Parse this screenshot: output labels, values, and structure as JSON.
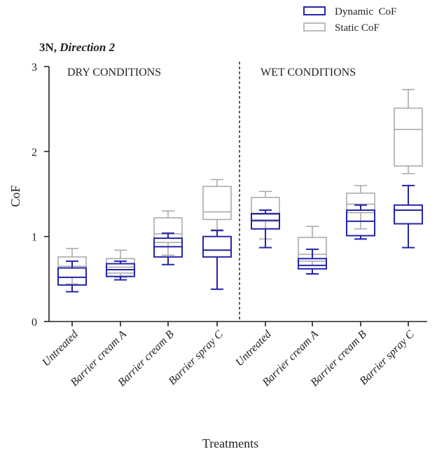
{
  "chart_data": {
    "type": "box",
    "title_main": "3N, ",
    "title_italic": "Direction 2",
    "xlabel": "Treatments",
    "ylabel": "CoF",
    "ylim": [
      0,
      3
    ],
    "yticks": [
      0,
      1,
      2,
      3
    ],
    "regions": [
      {
        "label": "DRY CONDITIONS"
      },
      {
        "label": "WET CONDITIONS"
      }
    ],
    "categories": [
      "Untreated",
      "Barrier cream A",
      "Barrier cream B",
      "Barrier spray C",
      "Untreated",
      "Barrier cream A",
      "Barrier cream B",
      "Barrier spray C"
    ],
    "series": [
      {
        "name": "Static CoF",
        "color": "#a6a6a6",
        "boxes": [
          {
            "min": 0.44,
            "q1": 0.52,
            "median": 0.65,
            "q3": 0.76,
            "max": 0.86
          },
          {
            "min": 0.52,
            "q1": 0.57,
            "median": 0.64,
            "q3": 0.74,
            "max": 0.84
          },
          {
            "min": 0.78,
            "q1": 0.93,
            "median": 1.03,
            "q3": 1.22,
            "max": 1.3
          },
          {
            "min": 1.08,
            "q1": 1.2,
            "median": 1.29,
            "q3": 1.59,
            "max": 1.67
          },
          {
            "min": 0.97,
            "q1": 1.18,
            "median": 1.26,
            "q3": 1.46,
            "max": 1.53
          },
          {
            "min": 0.66,
            "q1": 0.71,
            "median": 0.79,
            "q3": 0.99,
            "max": 1.12
          },
          {
            "min": 1.09,
            "q1": 1.28,
            "median": 1.38,
            "q3": 1.51,
            "max": 1.6
          },
          {
            "min": 1.74,
            "q1": 1.83,
            "median": 2.26,
            "q3": 2.51,
            "max": 2.73
          }
        ]
      },
      {
        "name": "Dynamic  CoF",
        "color": "#2525a8",
        "boxes": [
          {
            "min": 0.35,
            "q1": 0.43,
            "median": 0.52,
            "q3": 0.63,
            "max": 0.71
          },
          {
            "min": 0.49,
            "q1": 0.53,
            "median": 0.61,
            "q3": 0.68,
            "max": 0.71
          },
          {
            "min": 0.67,
            "q1": 0.76,
            "median": 0.88,
            "q3": 0.98,
            "max": 1.04
          },
          {
            "min": 0.38,
            "q1": 0.76,
            "median": 0.84,
            "q3": 1.0,
            "max": 1.07
          },
          {
            "min": 0.87,
            "q1": 1.09,
            "median": 1.19,
            "q3": 1.27,
            "max": 1.31
          },
          {
            "min": 0.56,
            "q1": 0.62,
            "median": 0.66,
            "q3": 0.74,
            "max": 0.85
          },
          {
            "min": 0.97,
            "q1": 1.01,
            "median": 1.18,
            "q3": 1.31,
            "max": 1.37
          },
          {
            "min": 0.87,
            "q1": 1.15,
            "median": 1.31,
            "q3": 1.37,
            "max": 1.6
          }
        ]
      }
    ],
    "legend": {
      "position": "top-right",
      "entries": [
        {
          "label": "Dynamic  CoF",
          "color": "#2525a8"
        },
        {
          "label": "Static CoF",
          "color": "#a6a6a6"
        }
      ]
    }
  }
}
